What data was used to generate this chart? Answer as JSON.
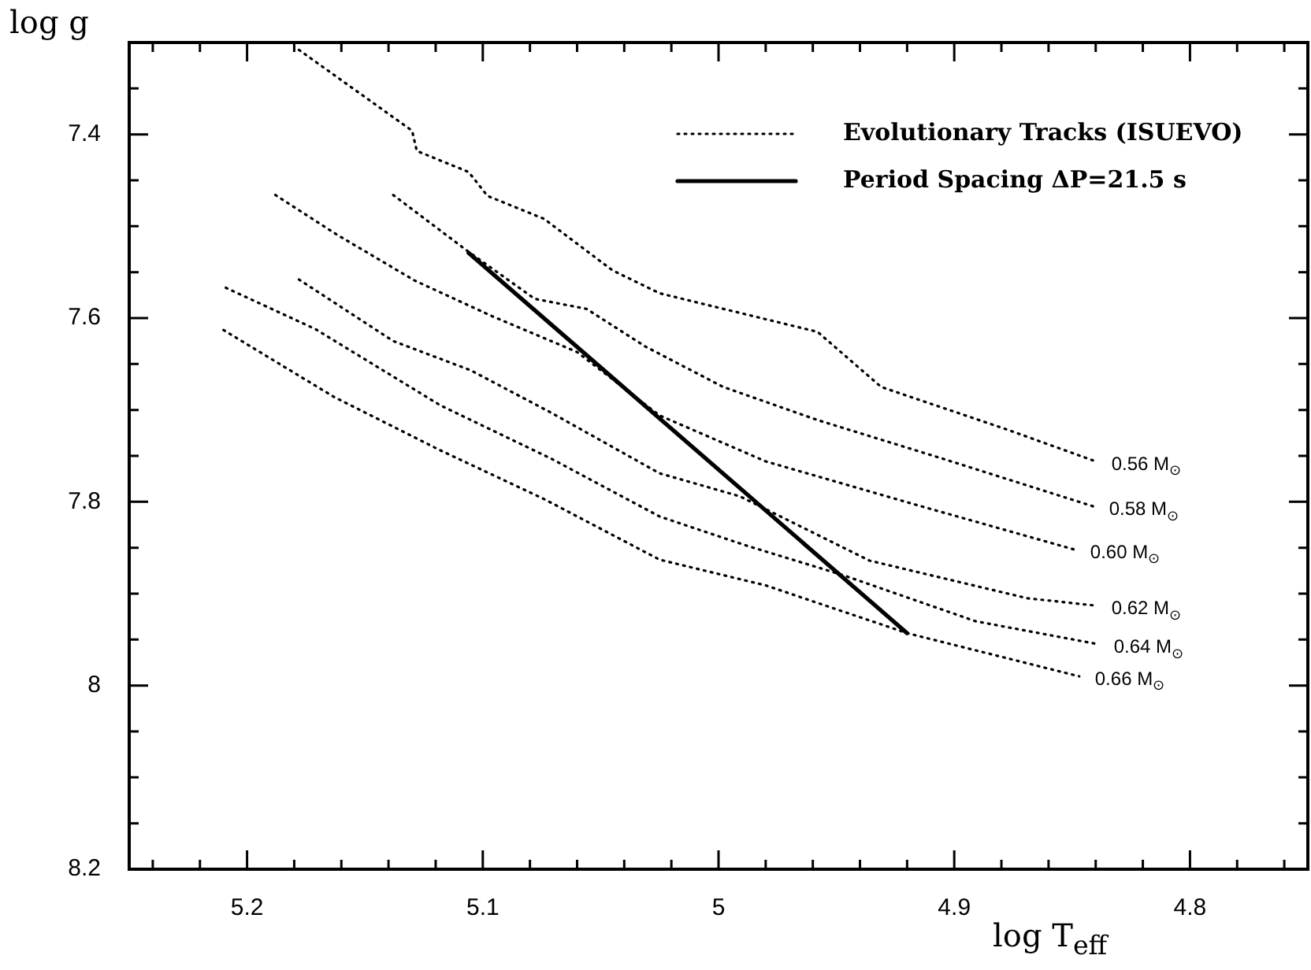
{
  "chart_data": {
    "type": "line",
    "xlabel": "log T$_{eff}$",
    "ylabel": "log g",
    "xlim": [
      5.25,
      4.75
    ],
    "ylim": [
      8.2,
      7.3
    ],
    "xticks": [
      {
        "value": 5.24,
        "label": null
      },
      {
        "value": 5.22,
        "label": null
      },
      5.2,
      {
        "value": 5.18,
        "label": null
      },
      {
        "value": 5.16,
        "label": null
      },
      {
        "value": 5.14,
        "label": null
      },
      {
        "value": 5.12,
        "label": null
      },
      5.1,
      {
        "value": 5.08,
        "label": null
      },
      {
        "value": 5.06,
        "label": null
      },
      {
        "value": 5.04,
        "label": null
      },
      {
        "value": 5.02,
        "label": null
      },
      5,
      {
        "value": 4.98,
        "label": null
      },
      {
        "value": 4.96,
        "label": null
      },
      {
        "value": 4.94,
        "label": null
      },
      {
        "value": 4.92,
        "label": null
      },
      4.9,
      {
        "value": 4.88,
        "label": null
      },
      {
        "value": 4.86,
        "label": null
      },
      {
        "value": 4.84,
        "label": null
      },
      {
        "value": 4.82,
        "label": null
      },
      4.8,
      {
        "value": 4.78,
        "label": null
      },
      {
        "value": 4.76,
        "label": null
      }
    ],
    "yticks": [
      {
        "value": 7.35,
        "label": null
      },
      7.4,
      {
        "value": 7.45,
        "label": null
      },
      {
        "value": 7.5,
        "label": null
      },
      {
        "value": 7.55,
        "label": null
      },
      7.6,
      {
        "value": 7.65,
        "label": null
      },
      {
        "value": 7.7,
        "label": null
      },
      {
        "value": 7.75,
        "label": null
      },
      7.8,
      {
        "value": 7.85,
        "label": null
      },
      {
        "value": 7.9,
        "label": null
      },
      {
        "value": 7.95,
        "label": null
      },
      8,
      {
        "value": 8.05,
        "label": null
      },
      {
        "value": 8.1,
        "label": null
      },
      {
        "value": 8.15,
        "label": null
      },
      8.2
    ],
    "marker": "none",
    "legend": "top right",
    "series": [
      {
        "name": "Evolutionary Tracks (ISUEVO)",
        "color": "#000000",
        "line_style": "dotted",
        "x": [
          5.178,
          5.13,
          5.128,
          5.106,
          5.098,
          5.074,
          5.045,
          5.025,
          4.958,
          4.931,
          4.878,
          4.84
        ],
        "values": [
          7.308,
          7.396,
          7.418,
          7.441,
          7.467,
          7.492,
          7.548,
          7.573,
          7.615,
          7.675,
          7.721,
          7.756
        ]
      },
      {
        "color": "#000000",
        "line_style": "dotted",
        "x": [
          5.138,
          5.107,
          5.078,
          5.056,
          5.031,
          4.998,
          4.958,
          4.905,
          4.841
        ],
        "values": [
          7.466,
          7.526,
          7.579,
          7.59,
          7.631,
          7.675,
          7.711,
          7.753,
          7.805
        ]
      },
      {
        "color": "#000000",
        "line_style": "dotted",
        "x": [
          5.188,
          5.162,
          5.129,
          5.096,
          5.06,
          5.025,
          4.98,
          4.918,
          4.849
        ],
        "values": [
          7.466,
          7.509,
          7.559,
          7.598,
          7.637,
          7.706,
          7.756,
          7.802,
          7.852
        ]
      },
      {
        "color": "#000000",
        "line_style": "dotted",
        "x": [
          5.178,
          5.138,
          5.105,
          5.071,
          5.025,
          4.991,
          4.936,
          4.869,
          4.84
        ],
        "values": [
          7.558,
          7.625,
          7.657,
          7.703,
          7.769,
          7.794,
          7.864,
          7.905,
          7.913
        ]
      },
      {
        "color": "#000000",
        "line_style": "dotted",
        "x": [
          5.209,
          5.171,
          5.118,
          5.071,
          5.025,
          4.989,
          4.947,
          4.891,
          4.839
        ],
        "values": [
          7.567,
          7.612,
          7.695,
          7.753,
          7.816,
          7.847,
          7.88,
          7.93,
          7.955
        ]
      },
      {
        "color": "#000000",
        "line_style": "dotted",
        "x": [
          5.21,
          5.163,
          5.118,
          5.074,
          5.025,
          4.98,
          4.92,
          4.847
        ],
        "values": [
          7.613,
          7.686,
          7.744,
          7.797,
          7.863,
          7.891,
          7.943,
          7.99
        ]
      },
      {
        "name": "Period Spacing ΔP=21.5 s",
        "color": "#000000",
        "line_style": "solid",
        "x": [
          5.106,
          4.92
        ],
        "values": [
          7.529,
          7.943
        ]
      }
    ],
    "annotations": [
      {
        "text": "0.56 M$_{⊙}$",
        "x": 4.84,
        "y": 7.756
      },
      {
        "text": "0.58 M$_{⊙}$",
        "x": 4.841,
        "y": 7.805
      },
      {
        "text": "0.60 M$_{⊙}$",
        "x": 4.849,
        "y": 7.852
      },
      {
        "text": "0.62 M$_{⊙}$",
        "x": 4.84,
        "y": 7.913
      },
      {
        "text": "0.64 M$_{⊙}$",
        "x": 4.839,
        "y": 7.955
      },
      {
        "text": "0.66 M$_{⊙}$",
        "x": 4.847,
        "y": 7.99
      }
    ]
  }
}
